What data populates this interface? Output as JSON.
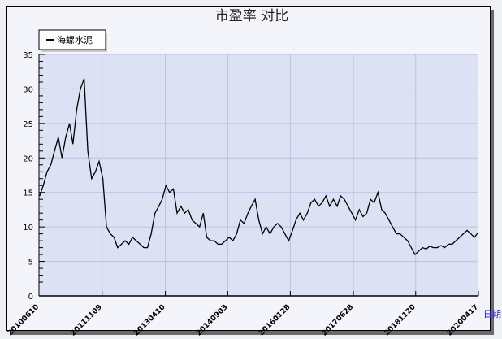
{
  "chart_data": {
    "type": "line",
    "title": "市盈率  对比",
    "xlabel": "日期",
    "ylabel": "",
    "ylim": [
      0,
      35
    ],
    "yticks": [
      0,
      5,
      10,
      15,
      20,
      25,
      30,
      35
    ],
    "xlim": [
      "2010-06-10",
      "2020-04-17"
    ],
    "xtick_labels": [
      "20100610",
      "20111109",
      "20130410",
      "20140903",
      "20160128",
      "20170628",
      "20181120",
      "20200417"
    ],
    "xtick_dates": [
      "2010-06-10",
      "2011-11-09",
      "2013-04-10",
      "2014-09-03",
      "2016-01-28",
      "2017-06-28",
      "2018-11-20",
      "2020-04-17"
    ],
    "grid": true,
    "legend": "top-left",
    "series": [
      {
        "name": "海螺水泥",
        "color": "#000000",
        "x": [
          "2010-06",
          "2010-07",
          "2010-08",
          "2010-09",
          "2010-10",
          "2010-11",
          "2010-12",
          "2011-01",
          "2011-02",
          "2011-03",
          "2011-04",
          "2011-05",
          "2011-06",
          "2011-07",
          "2011-08",
          "2011-09",
          "2011-10",
          "2011-11",
          "2011-12",
          "2012-01",
          "2012-02",
          "2012-03",
          "2012-04",
          "2012-05",
          "2012-06",
          "2012-07",
          "2012-08",
          "2012-09",
          "2012-10",
          "2012-11",
          "2012-12",
          "2013-01",
          "2013-02",
          "2013-03",
          "2013-04",
          "2013-05",
          "2013-06",
          "2013-07",
          "2013-08",
          "2013-09",
          "2013-10",
          "2013-11",
          "2013-12",
          "2014-01",
          "2014-02",
          "2014-03",
          "2014-04",
          "2014-05",
          "2014-06",
          "2014-07",
          "2014-08",
          "2014-09",
          "2014-10",
          "2014-11",
          "2014-12",
          "2015-01",
          "2015-02",
          "2015-03",
          "2015-04",
          "2015-05",
          "2015-06",
          "2015-07",
          "2015-08",
          "2015-09",
          "2015-10",
          "2015-11",
          "2015-12",
          "2016-01",
          "2016-02",
          "2016-03",
          "2016-04",
          "2016-05",
          "2016-06",
          "2016-07",
          "2016-08",
          "2016-09",
          "2016-10",
          "2016-11",
          "2016-12",
          "2017-01",
          "2017-02",
          "2017-03",
          "2017-04",
          "2017-05",
          "2017-06",
          "2017-07",
          "2017-08",
          "2017-09",
          "2017-10",
          "2017-11",
          "2017-12",
          "2018-01",
          "2018-02",
          "2018-03",
          "2018-04",
          "2018-05",
          "2018-06",
          "2018-07",
          "2018-08",
          "2018-09",
          "2018-10",
          "2018-11",
          "2018-12",
          "2019-01",
          "2019-02",
          "2019-03",
          "2019-04",
          "2019-05",
          "2019-06",
          "2019-07",
          "2019-08",
          "2019-09",
          "2019-10",
          "2019-11",
          "2019-12",
          "2020-01",
          "2020-02",
          "2020-03",
          "2020-04"
        ],
        "values": [
          14.5,
          16,
          18,
          19,
          21,
          23,
          20,
          23,
          25,
          22,
          27,
          30,
          31.5,
          21,
          17,
          18,
          19.5,
          17,
          10,
          9,
          8.5,
          7,
          7.5,
          8,
          7.5,
          8.5,
          8,
          7.5,
          7,
          7,
          9,
          12,
          13,
          14,
          16,
          15,
          15.5,
          12,
          13,
          12,
          12.5,
          11,
          10.5,
          10,
          12,
          8.5,
          8,
          8,
          7.5,
          7.5,
          8,
          8.5,
          8,
          9,
          11,
          10.5,
          12,
          13,
          14,
          11,
          9,
          10,
          9,
          10,
          10.5,
          10,
          9,
          8,
          9.5,
          11,
          12,
          11,
          12,
          13.5,
          14,
          13,
          13.5,
          14.5,
          13,
          14,
          13,
          14.5,
          14,
          13,
          12,
          11,
          12.5,
          11.5,
          12,
          14,
          13.5,
          15,
          12.5,
          12,
          11,
          10,
          9,
          9,
          8.5,
          8,
          7,
          6,
          6.5,
          7,
          6.8,
          7.2,
          7,
          7,
          7.3,
          7,
          7.5,
          7.5,
          8,
          8.5,
          9,
          9.5,
          9,
          8.5,
          9.2
        ]
      }
    ]
  }
}
